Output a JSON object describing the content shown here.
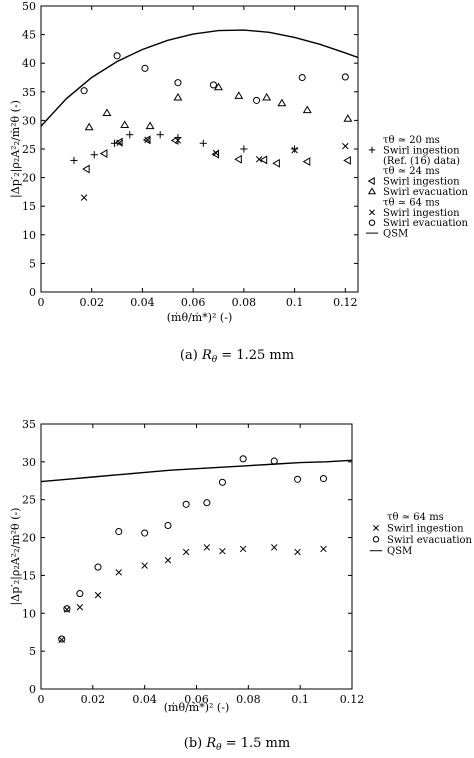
{
  "chart_data": [
    {
      "type": "scatter",
      "panel_id": "a",
      "caption": "(a)  Rθ = 1.25 mm",
      "caption_prefix": "(a)",
      "caption_symbol": "R",
      "caption_sub": "θ",
      "caption_value": "= 1.25 mm",
      "xlabel": "(ṁθ/ṁ*)² (-)",
      "ylabel": "|Δp′₂|ρ₂A²₂/ṁ²θ (-)",
      "xlim": [
        0,
        0.125
      ],
      "ylim": [
        0,
        50
      ],
      "xticks": [
        0,
        0.02,
        0.04,
        0.06,
        0.08,
        0.1,
        0.12
      ],
      "xtick_labels": [
        "0",
        "0.02",
        "0.04",
        "0.06",
        "0.08",
        "0.1",
        "0.12"
      ],
      "yticks": [
        0,
        5,
        10,
        15,
        20,
        25,
        30,
        35,
        40,
        45,
        50
      ],
      "ytick_labels": [
        "0",
        "5",
        "10",
        "15",
        "20",
        "25",
        "30",
        "35",
        "40",
        "45",
        "50"
      ],
      "grid": false,
      "legend_position": "right, outside",
      "legend": [
        {
          "header": "τθ ≃ 20 ms",
          "marker": "plus",
          "label": "Swirl ingestion",
          "label2": "(Ref. (16) data)"
        },
        {
          "header": "τθ ≃ 24 ms",
          "marker": "triangle-left",
          "label": "Swirl ingestion"
        },
        {
          "header": "",
          "marker": "triangle-up",
          "label": "Swirl evacuation"
        },
        {
          "header": "τθ ≃ 64 ms",
          "marker": "x",
          "label": "Swirl ingestion"
        },
        {
          "header": "",
          "marker": "circle",
          "label": "Swirl evacuation"
        },
        {
          "header": "",
          "marker": "line",
          "label": "QSM"
        }
      ],
      "series": [
        {
          "name": "Swirl ingestion (Ref. (16) data)",
          "marker": "plus",
          "x": [
            0.013,
            0.021,
            0.029,
            0.035,
            0.047,
            0.054,
            0.064,
            0.08,
            0.1
          ],
          "y": [
            23,
            24,
            26,
            27.5,
            27.5,
            27,
            26,
            25,
            25
          ]
        },
        {
          "name": "Swirl ingestion",
          "marker": "triangle-left",
          "x": [
            0.018,
            0.025,
            0.031,
            0.042,
            0.053,
            0.069,
            0.078,
            0.088,
            0.093,
            0.105,
            0.121
          ],
          "y": [
            21.5,
            24.2,
            26.2,
            26.6,
            26.5,
            24.1,
            23.2,
            23.1,
            22.5,
            22.8,
            23
          ]
        },
        {
          "name": "Swirl evacuation",
          "marker": "triangle-up",
          "x": [
            0.019,
            0.026,
            0.033,
            0.043,
            0.054,
            0.07,
            0.078,
            0.089,
            0.095,
            0.105,
            0.121
          ],
          "y": [
            28.8,
            31.3,
            29.2,
            29,
            34,
            35.8,
            34.3,
            34,
            33,
            31.8,
            30.3
          ]
        },
        {
          "name": "Swirl ingestion",
          "marker": "x",
          "x": [
            0.017,
            0.031,
            0.042,
            0.054,
            0.069,
            0.086,
            0.1,
            0.12
          ],
          "y": [
            16.5,
            26.1,
            26.6,
            26.5,
            24.3,
            23.2,
            24.8,
            25.5
          ]
        },
        {
          "name": "Swirl evacuation",
          "marker": "circle",
          "x": [
            0.017,
            0.03,
            0.041,
            0.054,
            0.068,
            0.085,
            0.103,
            0.12
          ],
          "y": [
            35.2,
            41.3,
            39.1,
            36.6,
            36.2,
            33.5,
            37.5,
            37.6
          ]
        },
        {
          "name": "QSM",
          "marker": "line",
          "x": [
            0,
            0.01,
            0.02,
            0.03,
            0.04,
            0.05,
            0.06,
            0.07,
            0.08,
            0.09,
            0.1,
            0.11,
            0.12,
            0.125
          ],
          "y": [
            29,
            33.8,
            37.5,
            40.3,
            42.4,
            44,
            45.1,
            45.7,
            45.8,
            45.4,
            44.5,
            43.3,
            41.8,
            41
          ]
        }
      ]
    },
    {
      "type": "scatter",
      "panel_id": "b",
      "caption": "(b)  Rθ = 1.5 mm",
      "caption_prefix": "(b)",
      "caption_symbol": "R",
      "caption_sub": "θ",
      "caption_value": "= 1.5 mm",
      "xlabel": "(ṁθ/ṁ*)² (-)",
      "ylabel": "|Δp′₂|ρ₂A²₂/ṁ²θ (-)",
      "xlim": [
        0,
        0.12
      ],
      "ylim": [
        0,
        35
      ],
      "xticks": [
        0,
        0.02,
        0.04,
        0.06,
        0.08,
        0.1,
        0.12
      ],
      "xtick_labels": [
        "0",
        "0.02",
        "0.04",
        "0.06",
        "0.08",
        "0.1",
        "0.12"
      ],
      "yticks": [
        0,
        5,
        10,
        15,
        20,
        25,
        30,
        35
      ],
      "ytick_labels": [
        "0",
        "5",
        "10",
        "15",
        "20",
        "25",
        "30",
        "35"
      ],
      "grid": false,
      "legend_position": "right, outside",
      "legend": [
        {
          "header": "τθ ≃ 64 ms",
          "marker": "x",
          "label": "Swirl ingestion"
        },
        {
          "header": "",
          "marker": "circle",
          "label": "Swirl evacuation"
        },
        {
          "header": "",
          "marker": "line",
          "label": "QSM"
        }
      ],
      "series": [
        {
          "name": "Swirl ingestion",
          "marker": "x",
          "x": [
            0.008,
            0.01,
            0.015,
            0.022,
            0.03,
            0.04,
            0.049,
            0.056,
            0.064,
            0.07,
            0.078,
            0.09,
            0.099,
            0.109
          ],
          "y": [
            6.5,
            10.5,
            10.8,
            12.4,
            15.4,
            16.3,
            17,
            18.1,
            18.7,
            18.2,
            18.5,
            18.7,
            18.1,
            18.5
          ]
        },
        {
          "name": "Swirl evacuation",
          "marker": "circle",
          "x": [
            0.008,
            0.01,
            0.015,
            0.022,
            0.03,
            0.04,
            0.049,
            0.056,
            0.064,
            0.07,
            0.078,
            0.09,
            0.099,
            0.109
          ],
          "y": [
            6.6,
            10.6,
            12.6,
            16.1,
            20.8,
            20.6,
            21.6,
            24.4,
            24.6,
            27.3,
            30.4,
            30.1,
            27.7,
            27.8
          ]
        },
        {
          "name": "QSM",
          "marker": "line",
          "x": [
            0,
            0.01,
            0.02,
            0.03,
            0.04,
            0.05,
            0.06,
            0.07,
            0.08,
            0.09,
            0.1,
            0.11,
            0.12
          ],
          "y": [
            27.4,
            27.7,
            28.0,
            28.3,
            28.6,
            28.9,
            29.1,
            29.3,
            29.5,
            29.7,
            29.9,
            30.0,
            30.2
          ]
        }
      ]
    }
  ]
}
